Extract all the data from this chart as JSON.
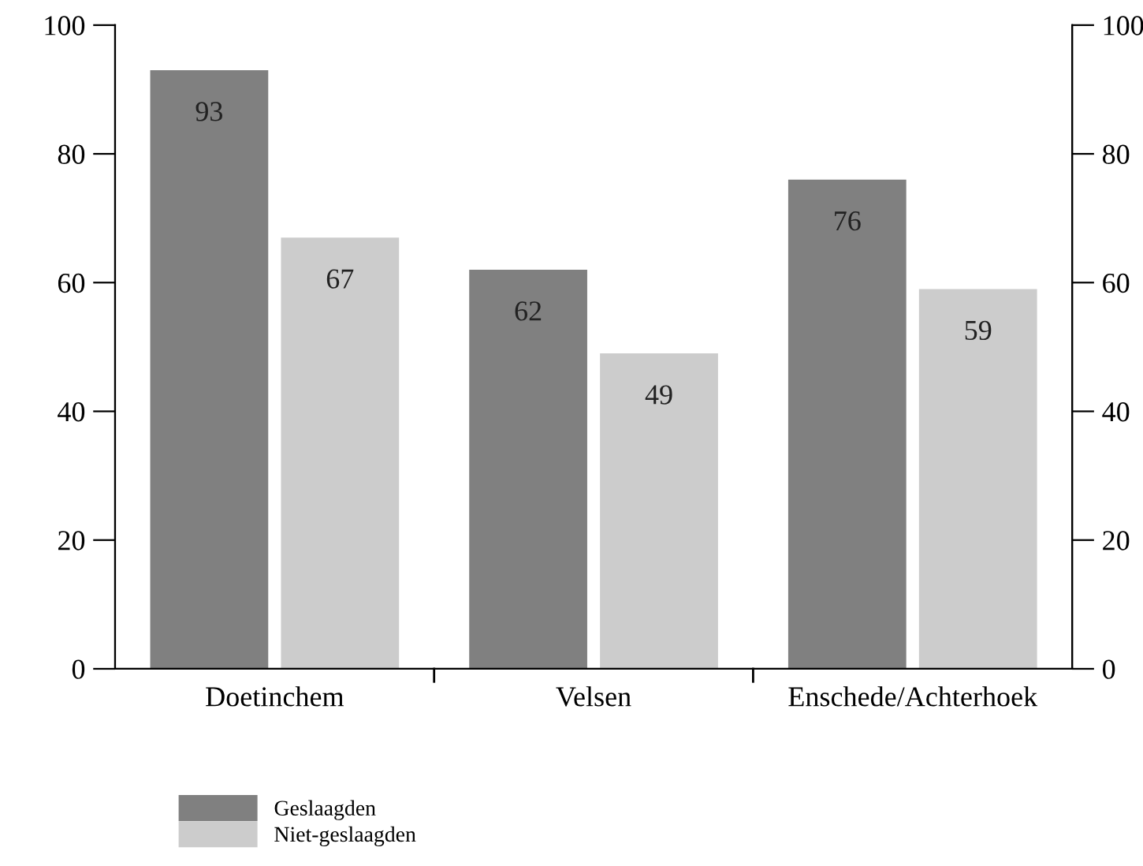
{
  "chart_data": {
    "type": "bar",
    "categories": [
      "Doetinchem",
      "Velsen",
      "Enschede/Achterhoek"
    ],
    "series": [
      {
        "name": "Geslaagden",
        "color": "#808080",
        "values": [
          93,
          62,
          76
        ]
      },
      {
        "name": "Niet-geslaagden",
        "color": "#cccccc",
        "values": [
          67,
          49,
          59
        ]
      }
    ],
    "ylim": [
      0,
      100
    ],
    "yticks": [
      0,
      20,
      40,
      60,
      80,
      100
    ],
    "y2lim": [
      0,
      100
    ],
    "y2ticks": [
      0,
      20,
      40,
      60,
      80,
      100
    ],
    "data_labels": true,
    "grid": false,
    "legend": "bottom left"
  }
}
